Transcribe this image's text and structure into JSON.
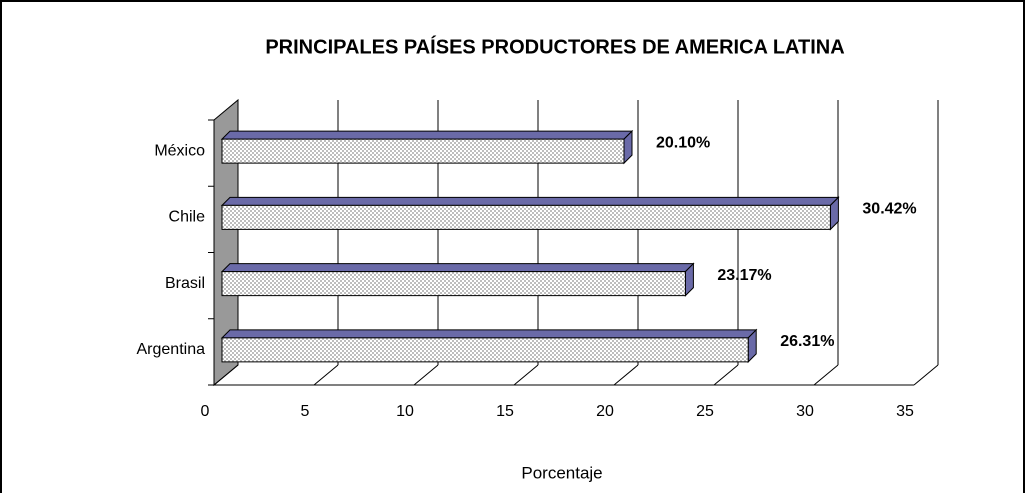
{
  "chart_data": {
    "type": "bar3d_horizontal",
    "title": "PRINCIPALES PAÍSES PRODUCTORES DE AMERICA LATINA",
    "x_label": "Porcentaje",
    "categories": [
      "Argentina",
      "Brasil",
      "Chile",
      "México"
    ],
    "values": [
      26.31,
      23.17,
      30.42,
      20.1
    ],
    "value_labels": [
      "26.31%",
      "23.17%",
      "30.42%",
      "20.10%"
    ],
    "color": "#d9d9d9",
    "side_color": "#6a6aa8",
    "wall_color": "#999999",
    "xlim": [
      0,
      35
    ],
    "xticks": [
      0,
      5,
      10,
      15,
      20,
      25,
      30,
      35
    ],
    "grid": true
  }
}
